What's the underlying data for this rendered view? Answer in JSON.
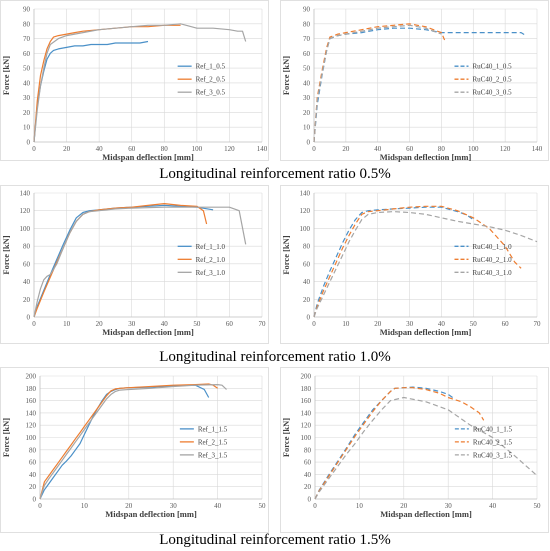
{
  "colors": {
    "blue": "#4a90c8",
    "orange": "#ed7d31",
    "gray": "#a5a5a5"
  },
  "captions": [
    "Longitudinal reinforcement ratio 0.5%",
    "Longitudinal reinforcement ratio 1.0%",
    "Longitudinal reinforcement ratio 1.5%"
  ],
  "chart_data": [
    {
      "type": "line",
      "xlabel": "Midspan deflection [mm]",
      "ylabel": "Force [kN]",
      "xlim": [
        0,
        140
      ],
      "ylim": [
        0,
        90
      ],
      "xstep": 20,
      "ystep": 10,
      "grid": true,
      "legend": "center-right",
      "dashed": false,
      "series": [
        {
          "name": "Ref_1_0.5",
          "color": "blue",
          "x": [
            0,
            2,
            4,
            6,
            8,
            10,
            12,
            15,
            20,
            25,
            30,
            35,
            40,
            45,
            50,
            55,
            60,
            65,
            70
          ],
          "y": [
            0,
            25,
            38,
            48,
            56,
            60,
            62,
            63,
            64,
            65,
            65,
            66,
            66,
            66,
            67,
            67,
            67,
            67,
            68
          ]
        },
        {
          "name": "Ref_2_0.5",
          "color": "orange",
          "x": [
            0,
            2,
            4,
            6,
            8,
            10,
            12,
            15,
            20,
            25,
            30,
            40,
            50,
            60,
            70,
            80,
            90
          ],
          "y": [
            0,
            28,
            45,
            55,
            63,
            68,
            71,
            72,
            73,
            74,
            75,
            76,
            77,
            78,
            78,
            79,
            79
          ]
        },
        {
          "name": "Ref_3_0.5",
          "color": "gray",
          "x": [
            0,
            2,
            4,
            6,
            8,
            10,
            15,
            20,
            30,
            40,
            50,
            60,
            70,
            80,
            90,
            100,
            110,
            120,
            125,
            128,
            130
          ],
          "y": [
            0,
            22,
            38,
            50,
            60,
            66,
            70,
            72,
            74,
            76,
            77,
            78,
            79,
            79,
            80,
            77,
            77,
            76,
            75,
            75,
            68
          ]
        }
      ]
    },
    {
      "type": "line",
      "xlabel": "Midspan deflection [mm]",
      "ylabel": "Force [kN]",
      "xlim": [
        0,
        140
      ],
      "ylim": [
        0,
        90
      ],
      "xstep": 20,
      "ystep": 10,
      "grid": true,
      "legend": "center-right",
      "dashed": true,
      "series": [
        {
          "name": "RuC40_1_0.5",
          "color": "blue",
          "x": [
            0,
            2,
            5,
            8,
            10,
            15,
            20,
            30,
            40,
            50,
            60,
            70,
            80,
            90,
            100,
            110,
            120,
            130,
            133
          ],
          "y": [
            0,
            25,
            45,
            62,
            70,
            72,
            73,
            74,
            76,
            77,
            77,
            76,
            74,
            74,
            74,
            74,
            74,
            74,
            72
          ]
        },
        {
          "name": "RuC40_2_0.5",
          "color": "orange",
          "x": [
            0,
            2,
            5,
            8,
            10,
            15,
            20,
            30,
            40,
            50,
            60,
            65,
            70,
            75,
            80,
            82
          ],
          "y": [
            0,
            30,
            48,
            64,
            71,
            73,
            74,
            76,
            78,
            79,
            80,
            79,
            78,
            76,
            74,
            69
          ]
        },
        {
          "name": "RuC40_3_0.5",
          "color": "gray",
          "x": [
            0,
            2,
            5,
            8,
            10,
            15,
            20,
            30,
            40,
            50,
            60,
            65,
            70,
            75,
            80
          ],
          "y": [
            0,
            28,
            46,
            62,
            70,
            72,
            73,
            75,
            77,
            78,
            79,
            78,
            77,
            75,
            73
          ]
        }
      ]
    },
    {
      "type": "line",
      "xlabel": "Midspan deflection [mm]",
      "ylabel": "Force [kN]",
      "xlim": [
        0,
        70
      ],
      "ylim": [
        0,
        140
      ],
      "xstep": 10,
      "ystep": 20,
      "grid": true,
      "legend": "center-right",
      "dashed": false,
      "series": [
        {
          "name": "Ref_1_1.0",
          "color": "blue",
          "x": [
            0,
            1,
            3,
            5,
            7,
            9,
            11,
            13,
            15,
            17,
            20,
            25,
            30,
            35,
            40,
            45,
            50,
            55
          ],
          "y": [
            0,
            12,
            30,
            48,
            65,
            82,
            98,
            112,
            118,
            120,
            121,
            123,
            124,
            125,
            126,
            125,
            124,
            121
          ]
        },
        {
          "name": "Ref_2_1.0",
          "color": "orange",
          "x": [
            0,
            1,
            3,
            5,
            7,
            9,
            11,
            13,
            15,
            17,
            20,
            25,
            30,
            35,
            40,
            45,
            50,
            52,
            53
          ],
          "y": [
            0,
            10,
            28,
            45,
            62,
            78,
            95,
            108,
            116,
            119,
            121,
            123,
            124,
            126,
            128,
            126,
            125,
            120,
            105
          ]
        },
        {
          "name": "Ref_3_1.0",
          "color": "gray",
          "x": [
            0,
            1,
            2,
            3,
            4,
            5,
            7,
            9,
            11,
            13,
            15,
            17,
            20,
            25,
            30,
            40,
            50,
            60,
            63,
            65
          ],
          "y": [
            0,
            18,
            32,
            42,
            46,
            48,
            60,
            78,
            95,
            108,
            116,
            119,
            120,
            122,
            123,
            124,
            124,
            124,
            120,
            82
          ]
        }
      ]
    },
    {
      "type": "line",
      "xlabel": "Midspan deflection [mm]",
      "ylabel": "Force [kN]",
      "xlim": [
        0,
        70
      ],
      "ylim": [
        0,
        140
      ],
      "xstep": 10,
      "ystep": 20,
      "grid": true,
      "legend": "center-right",
      "dashed": true,
      "series": [
        {
          "name": "RuC40_1_1.0",
          "color": "blue",
          "x": [
            0,
            1,
            3,
            5,
            7,
            9,
            11,
            13,
            15,
            17,
            20,
            25,
            30,
            35,
            40,
            42,
            45,
            48,
            50
          ],
          "y": [
            0,
            15,
            35,
            52,
            68,
            84,
            98,
            110,
            118,
            120,
            121,
            122,
            123,
            124,
            124,
            122,
            119,
            115,
            110
          ]
        },
        {
          "name": "RuC40_2_1.0",
          "color": "orange",
          "x": [
            0,
            1,
            3,
            5,
            7,
            9,
            11,
            13,
            15,
            17,
            20,
            25,
            30,
            35,
            40,
            45,
            50,
            55,
            60,
            63,
            65
          ],
          "y": [
            0,
            12,
            30,
            46,
            62,
            78,
            92,
            105,
            116,
            119,
            120,
            122,
            124,
            125,
            125,
            120,
            112,
            100,
            80,
            62,
            55
          ]
        },
        {
          "name": "RuC40_3_1.0",
          "color": "gray",
          "x": [
            0,
            1,
            3,
            5,
            7,
            9,
            11,
            13,
            15,
            17,
            20,
            25,
            30,
            35,
            40,
            45,
            50,
            55,
            60,
            65,
            70
          ],
          "y": [
            0,
            10,
            25,
            40,
            55,
            70,
            85,
            98,
            110,
            116,
            118,
            119,
            118,
            116,
            112,
            108,
            105,
            102,
            98,
            92,
            85
          ]
        }
      ]
    },
    {
      "type": "line",
      "xlabel": "Midspan deflection [mm]",
      "ylabel": "Force [kN]",
      "xlim": [
        0,
        50
      ],
      "ylim": [
        0,
        200
      ],
      "xstep": 10,
      "ystep": 20,
      "grid": true,
      "legend": "center-right",
      "dashed": false,
      "series": [
        {
          "name": "Ref_1_1.5",
          "color": "blue",
          "x": [
            0,
            1,
            2,
            3,
            4,
            5,
            6,
            7,
            8,
            9,
            10,
            11,
            12,
            13,
            14,
            15,
            16,
            17,
            18,
            20,
            25,
            30,
            35,
            37,
            38
          ],
          "y": [
            0,
            15,
            25,
            35,
            45,
            55,
            62,
            70,
            80,
            90,
            105,
            120,
            135,
            148,
            160,
            170,
            175,
            178,
            180,
            181,
            182,
            184,
            185,
            178,
            165
          ]
        },
        {
          "name": "Ref_2_1.5",
          "color": "orange",
          "x": [
            0,
            1,
            2,
            3,
            4,
            5,
            6,
            7,
            8,
            9,
            10,
            11,
            12,
            13,
            14,
            15,
            16,
            17,
            18,
            20,
            25,
            30,
            35,
            38,
            39,
            40
          ],
          "y": [
            0,
            28,
            38,
            48,
            58,
            68,
            78,
            88,
            98,
            108,
            118,
            128,
            138,
            148,
            158,
            168,
            176,
            179,
            180,
            181,
            183,
            185,
            186,
            187,
            185,
            180
          ]
        },
        {
          "name": "Ref_3_1.5",
          "color": "gray",
          "x": [
            0,
            1,
            2,
            3,
            4,
            5,
            6,
            7,
            8,
            9,
            10,
            11,
            12,
            13,
            14,
            15,
            16,
            17,
            18,
            20,
            25,
            30,
            35,
            40,
            41,
            42
          ],
          "y": [
            0,
            22,
            33,
            43,
            53,
            63,
            73,
            83,
            93,
            103,
            113,
            123,
            133,
            143,
            153,
            163,
            170,
            175,
            177,
            178,
            180,
            183,
            185,
            186,
            185,
            178
          ]
        }
      ]
    },
    {
      "type": "line",
      "xlabel": "Midspan deflection [mm]",
      "ylabel": "Force [kN]",
      "xlim": [
        0,
        50
      ],
      "ylim": [
        0,
        200
      ],
      "xstep": 10,
      "ystep": 20,
      "grid": true,
      "legend": "center-right",
      "dashed": true,
      "series": [
        {
          "name": "RuC40_1_1.5",
          "color": "blue",
          "x": [
            0,
            1,
            3,
            5,
            7,
            9,
            11,
            13,
            15,
            17,
            18,
            20,
            22,
            25,
            28,
            30,
            31
          ],
          "y": [
            0,
            15,
            38,
            60,
            82,
            105,
            125,
            145,
            160,
            175,
            180,
            181,
            182,
            180,
            175,
            170,
            165
          ]
        },
        {
          "name": "RuC40_2_1.5",
          "color": "orange",
          "x": [
            0,
            1,
            3,
            5,
            7,
            9,
            11,
            13,
            15,
            17,
            18,
            20,
            22,
            25,
            28,
            30,
            33,
            35,
            37,
            38
          ],
          "y": [
            0,
            14,
            36,
            58,
            80,
            102,
            122,
            142,
            160,
            175,
            180,
            181,
            181,
            178,
            172,
            165,
            158,
            150,
            140,
            128
          ]
        },
        {
          "name": "RuC40_3_1.5",
          "color": "gray",
          "x": [
            0,
            1,
            3,
            5,
            7,
            9,
            11,
            13,
            15,
            17,
            20,
            25,
            30,
            35,
            40,
            45,
            50
          ],
          "y": [
            0,
            12,
            32,
            52,
            72,
            90,
            110,
            128,
            145,
            160,
            165,
            158,
            145,
            120,
            100,
            70,
            38
          ]
        }
      ]
    }
  ]
}
